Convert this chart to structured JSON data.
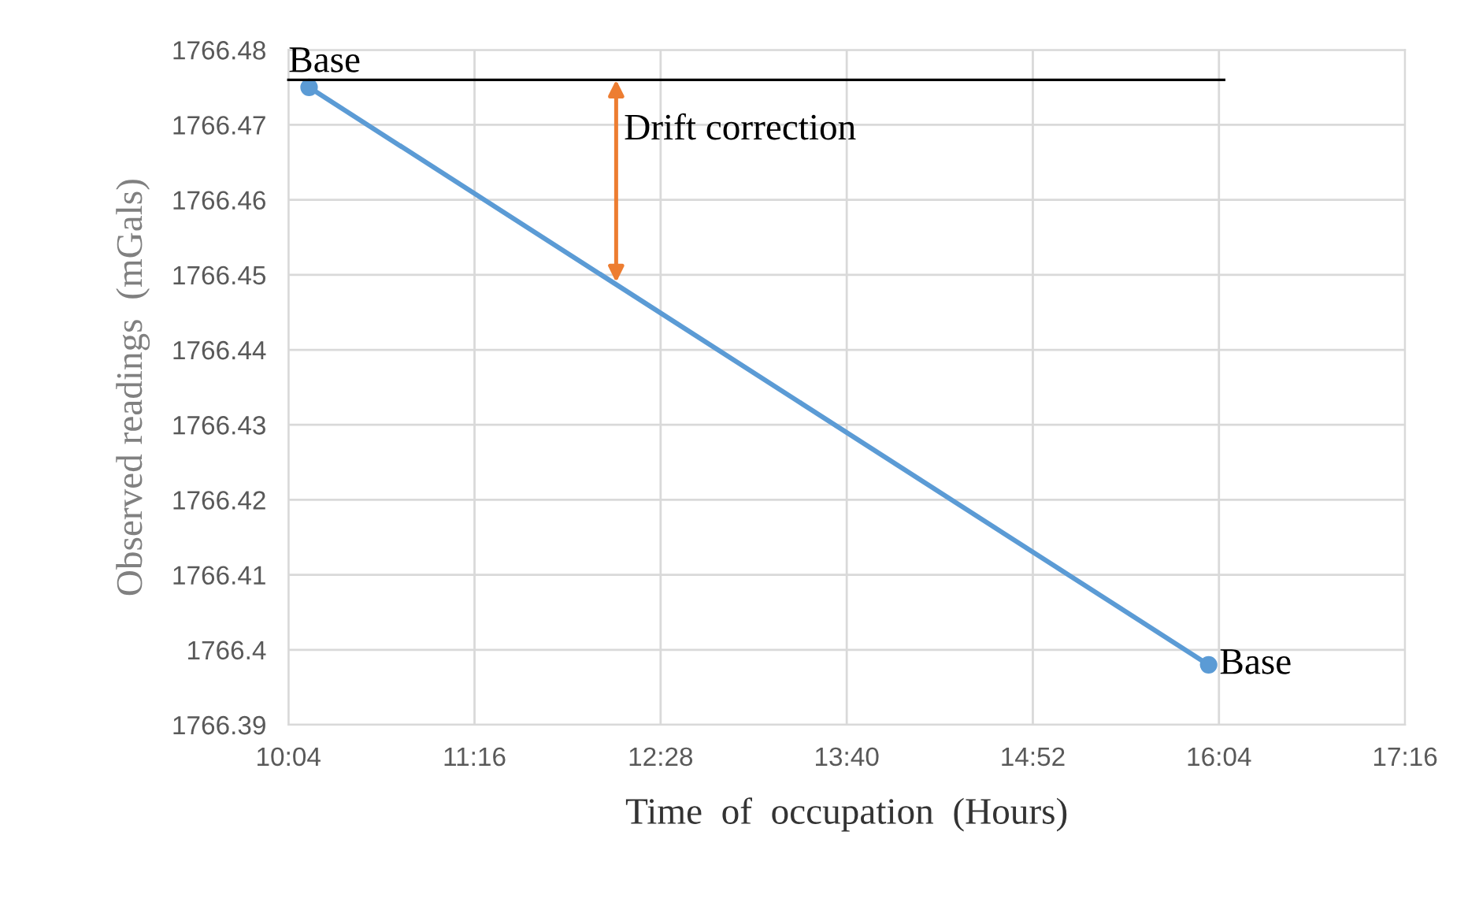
{
  "chart_data": {
    "type": "line",
    "xlabel": "Time  of  occupation  (Hours)",
    "ylabel": "Observed readings  (mGals)",
    "series": [
      {
        "color": "#5b9bd5",
        "marker": "circle",
        "x": [
          10.2,
          16.0
        ],
        "values": [
          1766.475,
          1766.398
        ]
      },
      {
        "color": "#000000",
        "marker": "none",
        "x": [
          10.0667,
          16.1
        ],
        "values": [
          1766.476,
          1766.476
        ]
      }
    ],
    "xlim": [
      10.0667,
      17.2667
    ],
    "xticks": [
      {
        "value": 10.0667,
        "label": "10:04"
      },
      {
        "value": 11.2667,
        "label": "11:16"
      },
      {
        "value": 12.4667,
        "label": "12:28"
      },
      {
        "value": 13.6667,
        "label": "13:40"
      },
      {
        "value": 14.8667,
        "label": "14:52"
      },
      {
        "value": 16.0667,
        "label": "16:04"
      },
      {
        "value": 17.2667,
        "label": "17:16"
      }
    ],
    "ylim": [
      1766.39,
      1766.48
    ],
    "yticks": [
      {
        "value": 1766.39,
        "label": "1766.39"
      },
      {
        "value": 1766.4,
        "label": "1766.4"
      },
      {
        "value": 1766.41,
        "label": "1766.41"
      },
      {
        "value": 1766.42,
        "label": "1766.42"
      },
      {
        "value": 1766.43,
        "label": "1766.43"
      },
      {
        "value": 1766.44,
        "label": "1766.44"
      },
      {
        "value": 1766.45,
        "label": "1766.45"
      },
      {
        "value": 1766.46,
        "label": "1766.46"
      },
      {
        "value": 1766.47,
        "label": "1766.47"
      },
      {
        "value": 1766.48,
        "label": "1766.48"
      }
    ],
    "annotations": [
      {
        "text": "Base",
        "x": 10.0667,
        "y": 1766.476
      },
      {
        "text": "Drift correction",
        "x": 12.18,
        "y": 1766.449
      },
      {
        "text": "Base",
        "x": 16.0,
        "y": 1766.398
      }
    ],
    "grid": true,
    "legend": false
  }
}
